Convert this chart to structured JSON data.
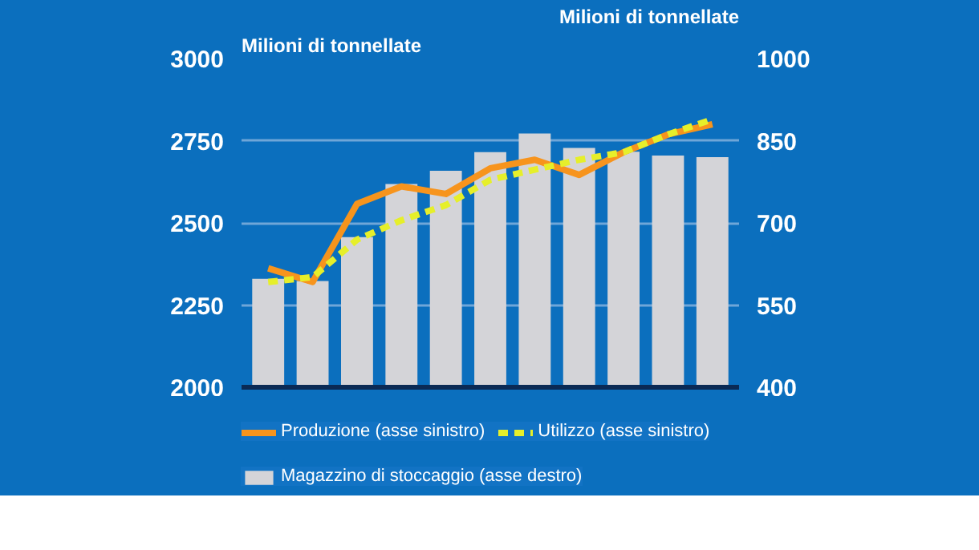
{
  "chart_data": {
    "type": "bar",
    "ylabel": "Milioni di tonnellate",
    "y2label": "Milioni di tonnellate",
    "categories": [
      null,
      null,
      null,
      null,
      null,
      null,
      null,
      null,
      null,
      null,
      null
    ],
    "series": [
      {
        "name": "Produzione (asse sinistro)",
        "type": "line",
        "color": "#f7941d",
        "line_style": "solid",
        "values": [
          2362,
          2320,
          2558,
          2611,
          2588,
          2666,
          2692,
          2646,
          2715,
          2769,
          2800
        ]
      },
      {
        "name": "Utilizzo (asse sinistro)",
        "type": "line",
        "color": "#e6ef2a",
        "line_style": "dashed",
        "values": [
          2320,
          2335,
          2449,
          2508,
          2554,
          2631,
          2662,
          2692,
          2715,
          2769,
          2815
        ]
      },
      {
        "name": "Magazzino di stoccaggio (asse destro)",
        "type": "bar",
        "axis": "y2",
        "color": "#d4d4d8",
        "values": [
          598,
          594,
          674,
          771,
          795,
          829,
          863,
          837,
          830,
          823,
          820
        ]
      }
    ],
    "ylim": [
      2000,
      3000
    ],
    "yticks": [
      2000,
      2250,
      2500,
      2750,
      3000
    ],
    "y2lim": [
      400,
      1000
    ],
    "y2ticks": [
      400,
      550,
      700,
      850,
      1000
    ],
    "grid": "y",
    "legend": "bottom",
    "tick_labels": "y"
  }
}
